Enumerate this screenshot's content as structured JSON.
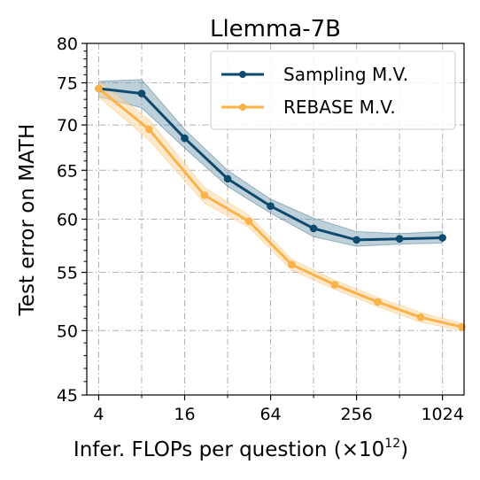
{
  "chart_data": {
    "type": "line",
    "title": "Llemma-7B",
    "xlabel": "Infer. FLOPs per question (×10",
    "xlabel_superscript": "12",
    "xlabel_suffix": ")",
    "ylabel": "Test error on MATH",
    "x_scale": "log2",
    "y_scale": "log",
    "xlim": [
      3.3,
      1450
    ],
    "ylim": [
      45,
      80
    ],
    "xticks": [
      4,
      16,
      64,
      256,
      1024
    ],
    "xtick_labels": [
      "4",
      "16",
      "64",
      "256",
      "1024"
    ],
    "yticks": [
      45,
      50,
      55,
      60,
      65,
      70,
      75,
      80
    ],
    "ytick_labels": [
      "45",
      "50",
      "55",
      "60",
      "65",
      "70",
      "75",
      "80"
    ],
    "grid": true,
    "legend_position": "top-right",
    "series": [
      {
        "name": "Sampling M.V.",
        "color": "#0e4a6e",
        "band_color": "#6f97ab",
        "x": [
          4,
          8,
          16,
          32,
          64,
          128,
          256,
          512,
          1024
        ],
        "y": [
          74.3,
          73.7,
          68.5,
          64.1,
          61.3,
          59.1,
          58.0,
          58.1,
          58.2
        ],
        "y_low": [
          73.3,
          72.0,
          67.4,
          63.3,
          60.6,
          58.3,
          57.4,
          57.6,
          57.7
        ],
        "y_high": [
          75.2,
          75.4,
          69.5,
          65.0,
          62.0,
          60.1,
          58.8,
          58.6,
          58.8
        ]
      },
      {
        "name": "REBASE M.V.",
        "color": "#fbb24a",
        "band_color": "#fbd9a6",
        "x": [
          4,
          9,
          22,
          45,
          90,
          180,
          360,
          720,
          1400
        ],
        "y": [
          74.3,
          69.5,
          62.4,
          59.8,
          55.7,
          53.9,
          52.4,
          51.1,
          50.3
        ],
        "y_low": [
          73.3,
          68.3,
          61.6,
          59.2,
          55.2,
          53.5,
          52.0,
          50.7,
          50.0
        ],
        "y_high": [
          75.3,
          70.6,
          63.2,
          60.4,
          56.2,
          54.3,
          52.8,
          51.5,
          50.6
        ]
      }
    ]
  }
}
